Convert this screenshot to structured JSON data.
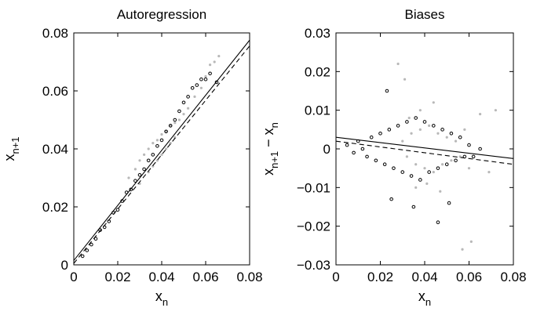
{
  "chart_data": [
    {
      "type": "scatter",
      "title": "Autoregression",
      "xlabel": {
        "base": "x",
        "sub": "n"
      },
      "ylabel": {
        "base": "x",
        "sub": "n+1"
      },
      "xlim": [
        0,
        0.08
      ],
      "ylim": [
        0,
        0.08
      ],
      "xticks": [
        "0",
        "0.02",
        "0.04",
        "0.06",
        "0.08"
      ],
      "yticks": [
        "0",
        "0.02",
        "0.04",
        "0.06",
        "0.08"
      ],
      "grid": false,
      "series": [
        {
          "marker": "hollow-circle",
          "color": "#000000",
          "points": [
            [
              0.004,
              0.003
            ],
            [
              0.006,
              0.005
            ],
            [
              0.008,
              0.007
            ],
            [
              0.01,
              0.009
            ],
            [
              0.012,
              0.012
            ],
            [
              0.014,
              0.013
            ],
            [
              0.016,
              0.015
            ],
            [
              0.018,
              0.018
            ],
            [
              0.02,
              0.019
            ],
            [
              0.022,
              0.022
            ],
            [
              0.024,
              0.025
            ],
            [
              0.026,
              0.026
            ],
            [
              0.028,
              0.029
            ],
            [
              0.03,
              0.031
            ],
            [
              0.032,
              0.033
            ],
            [
              0.034,
              0.036
            ],
            [
              0.036,
              0.038
            ],
            [
              0.038,
              0.041
            ],
            [
              0.04,
              0.043
            ],
            [
              0.042,
              0.046
            ],
            [
              0.044,
              0.048
            ],
            [
              0.046,
              0.05
            ],
            [
              0.048,
              0.053
            ],
            [
              0.05,
              0.056
            ],
            [
              0.052,
              0.058
            ],
            [
              0.054,
              0.061
            ],
            [
              0.056,
              0.062
            ],
            [
              0.058,
              0.064
            ],
            [
              0.06,
              0.064
            ],
            [
              0.062,
              0.066
            ],
            [
              0.065,
              0.063
            ]
          ]
        },
        {
          "marker": "dot",
          "color": "#b8b8b8",
          "points": [
            [
              0.025,
              0.03
            ],
            [
              0.028,
              0.033
            ],
            [
              0.03,
              0.036
            ],
            [
              0.032,
              0.038
            ],
            [
              0.034,
              0.04
            ],
            [
              0.036,
              0.042
            ],
            [
              0.038,
              0.043
            ],
            [
              0.04,
              0.045
            ],
            [
              0.042,
              0.046
            ],
            [
              0.044,
              0.048
            ],
            [
              0.046,
              0.049
            ],
            [
              0.048,
              0.05
            ],
            [
              0.05,
              0.052
            ],
            [
              0.052,
              0.054
            ],
            [
              0.036,
              0.034
            ],
            [
              0.038,
              0.036
            ],
            [
              0.04,
              0.038
            ],
            [
              0.042,
              0.04
            ],
            [
              0.044,
              0.042
            ],
            [
              0.046,
              0.044
            ],
            [
              0.03,
              0.028
            ],
            [
              0.034,
              0.032
            ],
            [
              0.055,
              0.058
            ],
            [
              0.058,
              0.061
            ],
            [
              0.06,
              0.065
            ],
            [
              0.062,
              0.069
            ],
            [
              0.064,
              0.07
            ],
            [
              0.066,
              0.072
            ]
          ]
        }
      ],
      "lines": [
        {
          "style": "solid",
          "points": [
            [
              0.0,
              0.0015
            ],
            [
              0.08,
              0.0775
            ]
          ]
        },
        {
          "style": "dashed",
          "points": [
            [
              0.0,
              0.0005
            ],
            [
              0.08,
              0.0755
            ]
          ]
        }
      ]
    },
    {
      "type": "scatter",
      "title": "Biases",
      "xlabel": {
        "base": "x",
        "sub": "n"
      },
      "ylabel": {
        "base": "x",
        "sub": "n+1",
        "suffix": " − x",
        "sub2": "n"
      },
      "xlim": [
        0,
        0.08
      ],
      "ylim": [
        -0.03,
        0.03
      ],
      "xticks": [
        "0",
        "0.02",
        "0.04",
        "0.06",
        "0.08"
      ],
      "yticks": [
        "−0.03",
        "−0.02",
        "−0.01",
        "0",
        "0.01",
        "0.02",
        "0.03"
      ],
      "grid": false,
      "series": [
        {
          "marker": "hollow-circle",
          "color": "#000000",
          "points": [
            [
              0.005,
              0.001
            ],
            [
              0.008,
              -0.001
            ],
            [
              0.01,
              0.002
            ],
            [
              0.012,
              0.0
            ],
            [
              0.014,
              -0.002
            ],
            [
              0.016,
              0.003
            ],
            [
              0.018,
              -0.003
            ],
            [
              0.02,
              0.004
            ],
            [
              0.022,
              -0.004
            ],
            [
              0.024,
              0.005
            ],
            [
              0.026,
              -0.005
            ],
            [
              0.028,
              0.006
            ],
            [
              0.03,
              -0.006
            ],
            [
              0.032,
              0.007
            ],
            [
              0.034,
              -0.007
            ],
            [
              0.036,
              0.008
            ],
            [
              0.038,
              -0.008
            ],
            [
              0.04,
              0.007
            ],
            [
              0.042,
              -0.006
            ],
            [
              0.044,
              0.006
            ],
            [
              0.046,
              -0.005
            ],
            [
              0.048,
              0.005
            ],
            [
              0.05,
              -0.004
            ],
            [
              0.052,
              0.004
            ],
            [
              0.054,
              -0.003
            ],
            [
              0.056,
              0.003
            ],
            [
              0.058,
              -0.002
            ],
            [
              0.06,
              0.001
            ],
            [
              0.062,
              -0.002
            ],
            [
              0.065,
              0.0
            ],
            [
              0.023,
              0.015
            ],
            [
              0.025,
              -0.013
            ],
            [
              0.035,
              -0.015
            ],
            [
              0.046,
              -0.019
            ],
            [
              0.051,
              -0.014
            ]
          ]
        },
        {
          "marker": "dot",
          "color": "#b8b8b8",
          "points": [
            [
              0.03,
              0.002
            ],
            [
              0.032,
              -0.002
            ],
            [
              0.034,
              0.004
            ],
            [
              0.036,
              -0.004
            ],
            [
              0.038,
              0.005
            ],
            [
              0.04,
              -0.005
            ],
            [
              0.042,
              0.006
            ],
            [
              0.044,
              -0.006
            ],
            [
              0.046,
              0.004
            ],
            [
              0.048,
              -0.004
            ],
            [
              0.05,
              0.003
            ],
            [
              0.052,
              -0.003
            ],
            [
              0.054,
              0.002
            ],
            [
              0.056,
              -0.002
            ],
            [
              0.058,
              0.005
            ],
            [
              0.06,
              -0.005
            ],
            [
              0.038,
              0.01
            ],
            [
              0.041,
              -0.009
            ],
            [
              0.044,
              0.012
            ],
            [
              0.047,
              -0.011
            ],
            [
              0.033,
              0.008
            ],
            [
              0.036,
              -0.01
            ],
            [
              0.031,
              0.018
            ],
            [
              0.028,
              0.022
            ],
            [
              0.057,
              -0.026
            ],
            [
              0.061,
              -0.024
            ],
            [
              0.065,
              0.009
            ],
            [
              0.072,
              0.01
            ],
            [
              0.069,
              -0.006
            ]
          ]
        }
      ],
      "lines": [
        {
          "style": "solid",
          "points": [
            [
              0.0,
              0.003
            ],
            [
              0.08,
              -0.0025
            ]
          ]
        },
        {
          "style": "dashed",
          "points": [
            [
              0.0,
              0.002
            ],
            [
              0.08,
              -0.004
            ]
          ]
        }
      ]
    }
  ]
}
